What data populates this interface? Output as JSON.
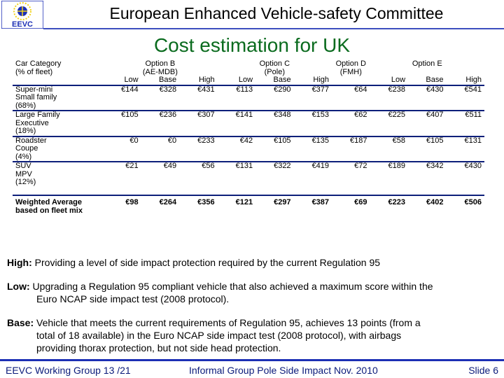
{
  "header": {
    "title": "European Enhanced Vehicle-safety Committee",
    "logo_text": "EEVC"
  },
  "slide_title": "Cost estimation for UK",
  "table": {
    "head1": [
      "Car Category",
      "Option B",
      "Option C",
      "Option D",
      "Option E"
    ],
    "head2": [
      "(% of fleet)",
      "(AE-MDB)",
      "(Pole)",
      "(FMH)"
    ],
    "head3": [
      "Low",
      "Base",
      "High",
      "Low",
      "Base",
      "High",
      "Low",
      "Base",
      "High"
    ],
    "rows": [
      {
        "label": [
          "Super-mini",
          "Small family",
          "(68%)"
        ],
        "values": [
          "€144",
          "€328",
          "€431",
          "€113",
          "€290",
          "€377",
          "€64",
          "€238",
          "€430",
          "€541"
        ]
      },
      {
        "label": [
          "Large Family",
          "Executive",
          "(18%)"
        ],
        "values": [
          "€105",
          "€236",
          "€307",
          "€141",
          "€348",
          "€153",
          "€62",
          "€225",
          "€407",
          "€511"
        ]
      },
      {
        "label": [
          "Roadster",
          "Coupe",
          "(4%)"
        ],
        "values": [
          "€0",
          "€0",
          "€233",
          "€42",
          "€105",
          "€135",
          "€187",
          "€58",
          "€105",
          "€131"
        ]
      },
      {
        "label": [
          "SUV",
          "MPV",
          "(12%)"
        ],
        "values": [
          "€21",
          "€49",
          "€56",
          "€131",
          "€322",
          "€419",
          "€72",
          "€189",
          "€342",
          "€430"
        ]
      }
    ],
    "weighted": {
      "label": [
        "Weighted Average",
        "based on fleet mix"
      ],
      "values": [
        "€98",
        "€264",
        "€356",
        "€121",
        "€297",
        "€387",
        "€69",
        "€223",
        "€402",
        "€506"
      ]
    }
  },
  "notes": {
    "high_label": "High:",
    "high_text": "Providing a level of side impact protection required by the current Regulation 95",
    "low_label": "Low:",
    "low_text1": "Upgrading a Regulation 95 compliant vehicle that also achieved a maximum score within the",
    "low_text2": "Euro NCAP side impact test (2008 protocol).",
    "base_label": "Base:",
    "base_text1": "Vehicle that meets the current requirements of Regulation 95, achieves 13 points (from a",
    "base_text2": "total of 18 available) in the Euro NCAP side impact test (2008 protocol), with airbags",
    "base_text3": "providing thorax protection, but not side head protection."
  },
  "footer": {
    "left": "EEVC Working Group 13 /21",
    "center": "Informal Group Pole Side Impact Nov. 2010",
    "right": "Slide 6"
  },
  "colors": {
    "title_green": "#0a6b1e",
    "accent_blue": "#1c2fb5",
    "logo_yellow": "#f2d21b"
  }
}
